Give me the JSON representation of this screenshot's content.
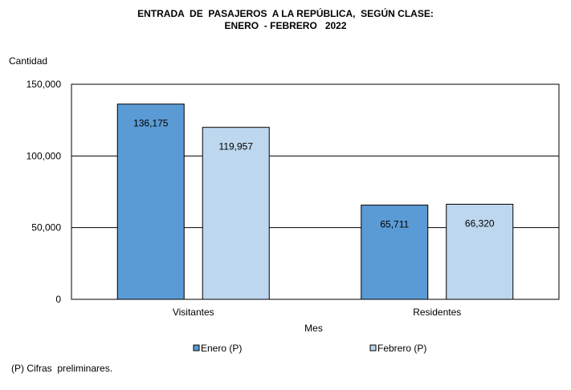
{
  "title": [
    "ENTRADA  DE  PASAJEROS  A LA REPÚBLICA,  SEGÚN CLASE:",
    "ENERO  - FEBRERO   2022"
  ],
  "footnote": "(P) Cifras  preliminares.",
  "chart_data": {
    "type": "bar",
    "ylabel": "Cantidad",
    "xlabel": "Mes",
    "ylim": [
      0,
      150000
    ],
    "yticks": [
      0,
      50000,
      100000,
      150000
    ],
    "ytick_labels": [
      "0",
      "50,000",
      "100,000",
      "150,000"
    ],
    "grid": true,
    "legend_position": "bottom",
    "categories": [
      "Visitantes",
      "Residentes"
    ],
    "series": [
      {
        "name": "Enero (P)",
        "color": "#5b9bd5",
        "values": [
          136175,
          65711
        ],
        "labels": [
          "136,175",
          "65,711"
        ]
      },
      {
        "name": "Febrero (P)",
        "color": "#bdd7ee",
        "values": [
          119957,
          66320
        ],
        "labels": [
          "119,957",
          "66,320"
        ]
      }
    ]
  }
}
